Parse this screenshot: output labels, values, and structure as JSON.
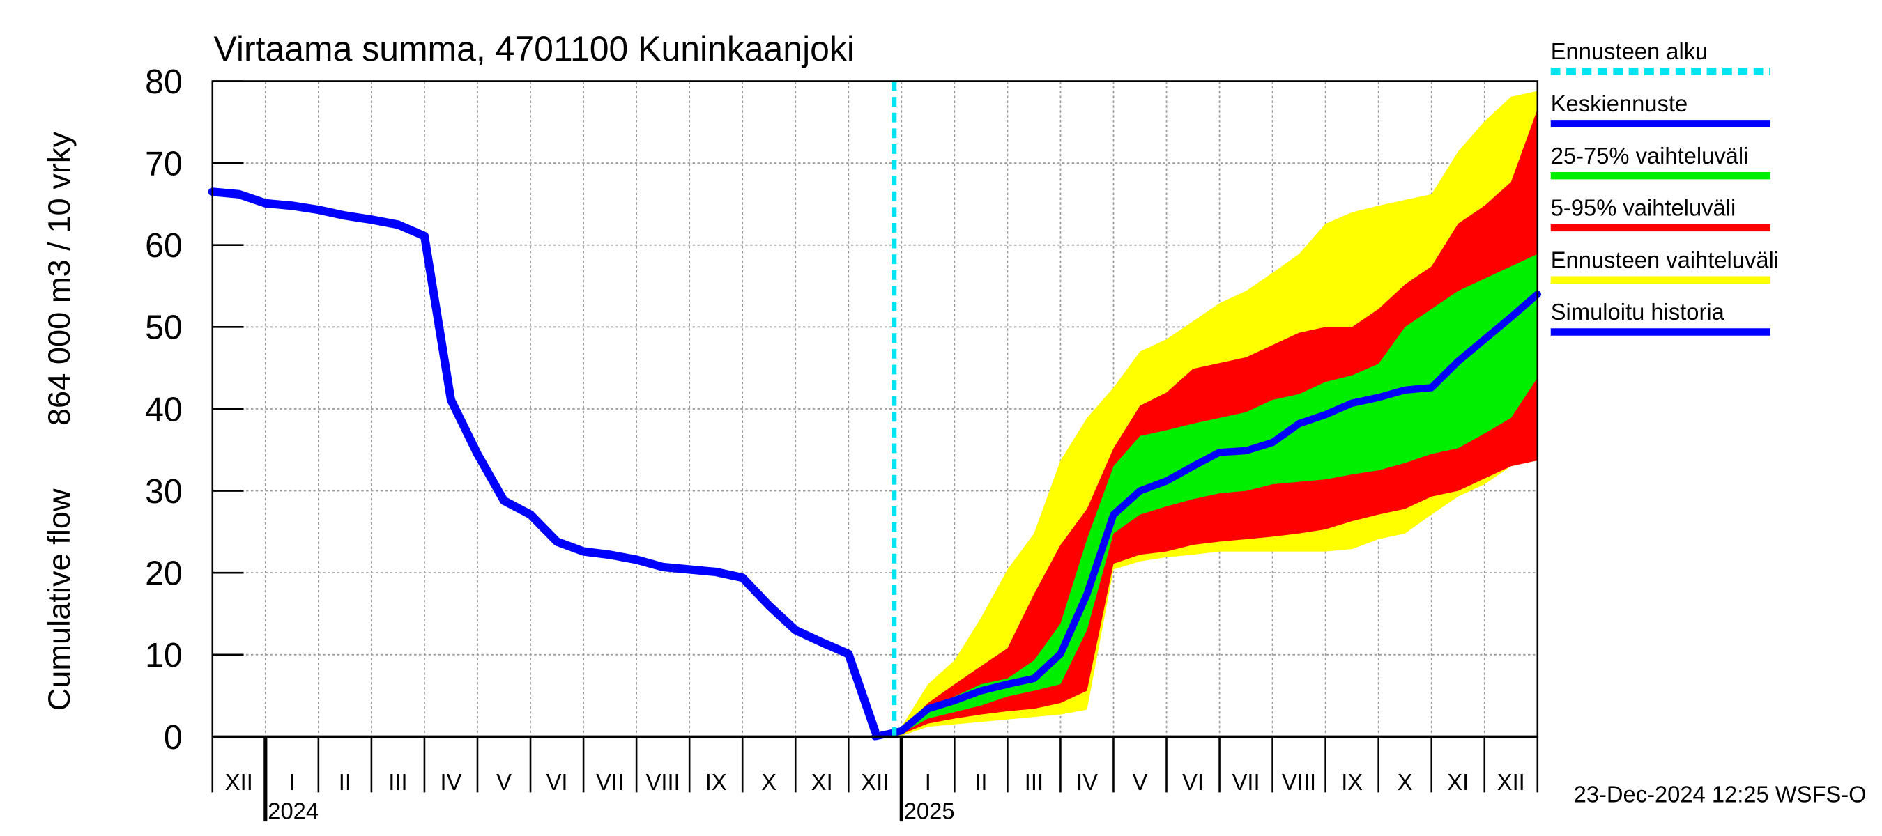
{
  "chart_data": {
    "type": "line",
    "title": "Virtaama summa, 4701100 Kuninkaanjoki",
    "ylabel": [
      "Cumulative flow",
      "864 000 m3 / 10 vrky"
    ],
    "footer": "23-Dec-2024 12:25 WSFS-O",
    "years": [
      "2024",
      "2025"
    ],
    "categories": [
      null,
      "XII",
      null,
      "I",
      null,
      "II",
      null,
      "III",
      null,
      "IV",
      null,
      "V",
      null,
      "VI",
      null,
      "VII",
      null,
      "VIII",
      null,
      "IX",
      null,
      "X",
      null,
      "XI",
      null,
      "XII",
      null,
      "I",
      null,
      "II",
      null,
      "III",
      null,
      "IV",
      null,
      "V",
      null,
      "VI",
      null,
      "VII",
      null,
      "VIII",
      null,
      "IX",
      null,
      "X",
      null,
      "XI",
      null,
      "XII",
      null
    ],
    "ylim": [
      0,
      80
    ],
    "yticks": [
      0,
      10,
      20,
      30,
      40,
      50,
      60,
      70,
      80
    ],
    "grid": true,
    "forecast_start": {
      "name": "Ennusteen alku",
      "color": "#00e5ee"
    },
    "bands": [
      {
        "name": "Ennusteen vaihteluväli",
        "color": "#ffff00",
        "high": [
          null,
          null,
          null,
          null,
          null,
          null,
          null,
          null,
          null,
          null,
          null,
          null,
          null,
          null,
          null,
          null,
          null,
          null,
          null,
          null,
          null,
          null,
          null,
          null,
          null,
          0,
          1.2,
          6.4,
          9.3,
          14.5,
          20.4,
          24.8,
          33.7,
          38.9,
          42.6,
          47.0,
          48.5,
          50.7,
          52.9,
          54.4,
          56.6,
          58.9,
          62.6,
          64.0,
          64.8,
          65.5,
          66.2,
          71.4,
          75.1,
          78.1,
          78.8
        ],
        "low": [
          null,
          null,
          null,
          null,
          null,
          null,
          null,
          null,
          null,
          null,
          null,
          null,
          null,
          null,
          null,
          null,
          null,
          null,
          null,
          null,
          null,
          null,
          null,
          null,
          null,
          0,
          0.1,
          1.2,
          1.5,
          1.8,
          2.1,
          2.4,
          2.7,
          3.3,
          20.4,
          21.4,
          21.9,
          22.2,
          22.6,
          22.6,
          22.6,
          22.6,
          22.6,
          22.9,
          24.1,
          24.8,
          27.1,
          29.3,
          30.8,
          33.0,
          33.7
        ]
      },
      {
        "name": "5-95% vaihteluväli",
        "color": "#ff0000",
        "high": [
          null,
          null,
          null,
          null,
          null,
          null,
          null,
          null,
          null,
          null,
          null,
          null,
          null,
          null,
          null,
          null,
          null,
          null,
          null,
          null,
          null,
          null,
          null,
          null,
          null,
          0,
          0.9,
          4.1,
          6.4,
          8.6,
          10.8,
          17.4,
          23.4,
          27.8,
          35.2,
          40.4,
          42.0,
          44.9,
          45.6,
          46.3,
          47.8,
          49.3,
          50.0,
          50.0,
          52.2,
          55.2,
          57.4,
          62.6,
          64.8,
          67.7,
          76.6
        ],
        "low": [
          null,
          null,
          null,
          null,
          null,
          null,
          null,
          null,
          null,
          null,
          null,
          null,
          null,
          null,
          null,
          null,
          null,
          null,
          null,
          null,
          null,
          null,
          null,
          null,
          null,
          0,
          0.3,
          1.6,
          2.2,
          2.7,
          3.1,
          3.4,
          4.1,
          5.6,
          21.1,
          22.2,
          22.6,
          23.4,
          23.8,
          24.1,
          24.4,
          24.8,
          25.3,
          26.3,
          27.1,
          27.8,
          29.3,
          30.0,
          31.5,
          33.0,
          33.7
        ]
      },
      {
        "name": "25-75% vaihteluväli",
        "color": "#00ee00",
        "high": [
          null,
          null,
          null,
          null,
          null,
          null,
          null,
          null,
          null,
          null,
          null,
          null,
          null,
          null,
          null,
          null,
          null,
          null,
          null,
          null,
          null,
          null,
          null,
          null,
          null,
          0,
          0.6,
          3.4,
          4.9,
          6.4,
          7.1,
          9.3,
          13.8,
          24.1,
          33.0,
          36.7,
          37.4,
          38.2,
          38.9,
          39.6,
          41.1,
          41.8,
          43.3,
          44.1,
          45.5,
          50.0,
          52.2,
          54.4,
          55.9,
          57.4,
          58.9
        ],
        "low": [
          null,
          null,
          null,
          null,
          null,
          null,
          null,
          null,
          null,
          null,
          null,
          null,
          null,
          null,
          null,
          null,
          null,
          null,
          null,
          null,
          null,
          null,
          null,
          null,
          null,
          0,
          0.4,
          2.2,
          3.0,
          3.8,
          4.9,
          5.6,
          6.4,
          13.0,
          24.8,
          27.1,
          28.1,
          29.0,
          29.7,
          30.0,
          30.8,
          31.1,
          31.4,
          32.0,
          32.5,
          33.4,
          34.5,
          35.2,
          37.0,
          38.9,
          43.8
        ]
      }
    ],
    "series": [
      {
        "name": "Keskiennuste",
        "color": "#0000ff",
        "values": [
          null,
          null,
          null,
          null,
          null,
          null,
          null,
          null,
          null,
          null,
          null,
          null,
          null,
          null,
          null,
          null,
          null,
          null,
          null,
          null,
          null,
          null,
          null,
          null,
          null,
          0,
          0.7,
          3.4,
          4.4,
          5.6,
          6.4,
          7.1,
          10.1,
          17.4,
          27.1,
          30.0,
          31.2,
          33.0,
          34.7,
          34.9,
          35.9,
          38.2,
          39.3,
          40.7,
          41.4,
          42.3,
          42.6,
          45.8,
          48.5,
          51.2,
          54.0
        ]
      },
      {
        "name": "Simuloitu historia",
        "color": "#0000ff",
        "values": [
          66.5,
          66.2,
          65.1,
          64.8,
          64.3,
          63.6,
          63.1,
          62.5,
          61.1,
          41.1,
          34.5,
          28.8,
          27.1,
          23.8,
          22.6,
          22.2,
          21.6,
          20.7,
          20.4,
          20.1,
          19.4,
          16.0,
          13.0,
          11.5,
          10.1,
          0.7,
          null,
          null,
          null,
          null,
          null,
          null,
          null,
          null,
          null,
          null,
          null,
          null,
          null,
          null,
          null,
          null,
          null,
          null,
          null,
          null,
          null,
          null,
          null,
          null,
          null
        ]
      }
    ]
  }
}
